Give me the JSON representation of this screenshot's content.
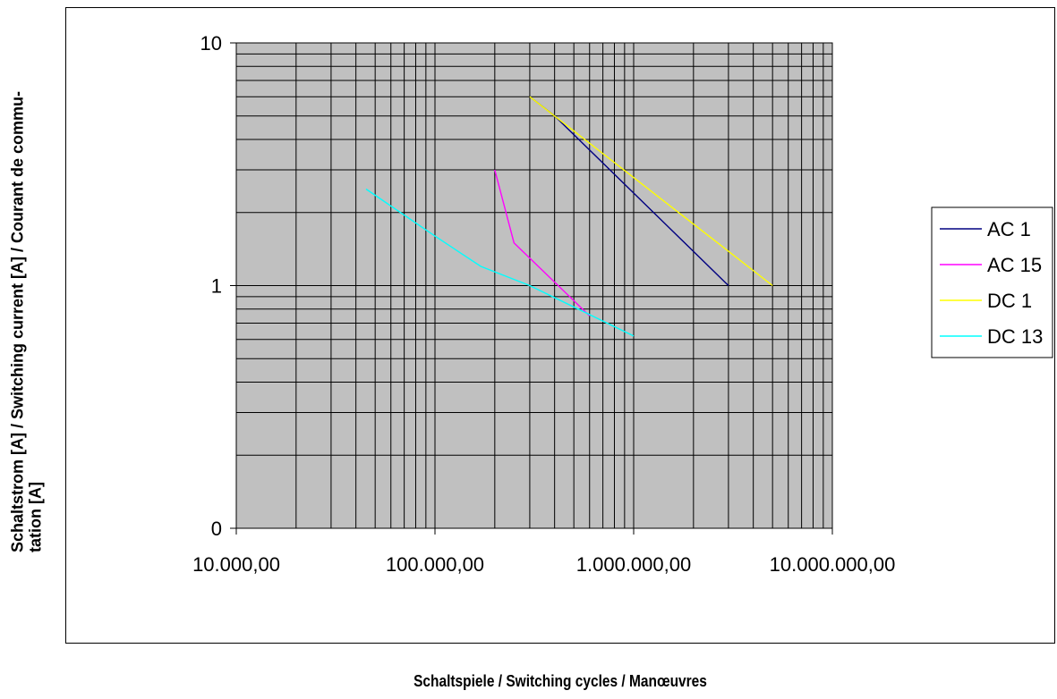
{
  "chart_data": {
    "type": "line",
    "title": "",
    "xlabel": "Schaltspiele / Switching cycles / Manœuvres",
    "ylabel_lines": [
      "Schaltstrom [A] / Switching current [A] / Courant de commu-",
      "tation [A]"
    ],
    "x_scale": "log",
    "y_scale": "log",
    "xlim": [
      10000,
      10000000
    ],
    "ylim": [
      0.1,
      10
    ],
    "x_tick_values": [
      10000,
      100000,
      1000000,
      10000000
    ],
    "x_tick_labels": [
      "10.000,00",
      "100.000,00",
      "1.000.000,00",
      "10.000.000,00"
    ],
    "y_tick_values": [
      0.1,
      1,
      10
    ],
    "y_tick_labels": [
      "0",
      "1",
      "10"
    ],
    "grid": true,
    "plot_background": "#c0c0c0",
    "legend_position": "right",
    "series": [
      {
        "name": "AC 1",
        "color": "#000080",
        "x": [
          300000,
          400000,
          3000000
        ],
        "y": [
          6,
          5,
          1
        ]
      },
      {
        "name": "AC 15",
        "color": "#ff00ff",
        "x": [
          200000,
          250000,
          600000
        ],
        "y": [
          3,
          1.5,
          0.75
        ]
      },
      {
        "name": "DC 1",
        "color": "#ffff00",
        "x": [
          300000,
          5000000
        ],
        "y": [
          6,
          1
        ]
      },
      {
        "name": "DC 13",
        "color": "#00ffff",
        "x": [
          45000,
          100000,
          170000,
          300000,
          1000000
        ],
        "y": [
          2.5,
          1.6,
          1.2,
          1.0,
          0.62
        ]
      }
    ]
  }
}
